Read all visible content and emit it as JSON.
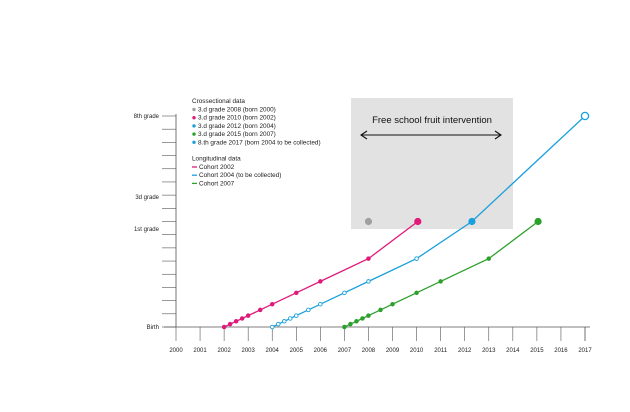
{
  "chart_data": {
    "type": "line",
    "x_ticks": [
      "2000",
      "2001",
      "2002",
      "2003",
      "2004",
      "2005",
      "2006",
      "2007",
      "2008",
      "2009",
      "2010",
      "2011",
      "2012",
      "2013",
      "2014",
      "2015",
      "2016",
      "2017"
    ],
    "y_ticks": [
      "Birth",
      "1st grade",
      "3d grade",
      "8th grade"
    ],
    "y_range": [
      0,
      14
    ],
    "x_range": [
      2000,
      2017
    ],
    "intervention": {
      "label": "Free school fruit intervention",
      "x_start": 2007.2,
      "x_end": 2014,
      "y_start": 4,
      "y_end": 10
    },
    "crossectional": {
      "title": "Crossectional data",
      "points": [
        {
          "label": "3.d grade 2008 (born 2000)",
          "x": 2008,
          "y": 5,
          "color": "#a0a0a0"
        },
        {
          "label": "3.d grade 2010 (born 2002)",
          "x": 2010.05,
          "y": 5,
          "color": "#e0197a"
        },
        {
          "label": "3.d grade 2012 (born 2004)",
          "x": 2012.3,
          "y": 5,
          "color": "#1aa0dc"
        },
        {
          "label": "3.d grade 2015 (born 2007)",
          "x": 2015.05,
          "y": 5,
          "color": "#2ca02c"
        },
        {
          "label": "8.th grade 2017 (born 2004 to be collected)",
          "x": 2017,
          "y": 10,
          "color": "#1aa0dc"
        }
      ]
    },
    "longitudinal": {
      "title": "Longitudinal data",
      "series": [
        {
          "name": "Cohort 2002",
          "color": "#e0197a",
          "x": [
            2002,
            2002.25,
            2002.5,
            2002.75,
            2003,
            2003.5,
            2004,
            2005,
            2006,
            2008,
            2010.05
          ],
          "y": [
            0,
            0.135,
            0.27,
            0.405,
            0.54,
            0.81,
            1.08,
            1.62,
            2.16,
            3.24,
            5
          ],
          "terminal_filled": true
        },
        {
          "name": "Cohort 2004 (to be collected)",
          "color": "#1aa0dc",
          "x": [
            2004,
            2004.25,
            2004.5,
            2004.75,
            2005,
            2005.5,
            2006,
            2007,
            2008,
            2010,
            2012.3,
            2017
          ],
          "y": [
            0,
            0.135,
            0.27,
            0.405,
            0.54,
            0.81,
            1.08,
            1.62,
            2.16,
            3.24,
            5,
            10
          ],
          "hollow": true
        },
        {
          "name": "Cohort 2007",
          "color": "#2ca02c",
          "x": [
            2007,
            2007.25,
            2007.5,
            2007.75,
            2008,
            2008.5,
            2009,
            2010,
            2011,
            2013,
            2015.05
          ],
          "y": [
            0,
            0.135,
            0.27,
            0.405,
            0.54,
            0.81,
            1.08,
            1.62,
            2.16,
            3.24,
            5
          ],
          "terminal_filled": true
        }
      ]
    }
  }
}
